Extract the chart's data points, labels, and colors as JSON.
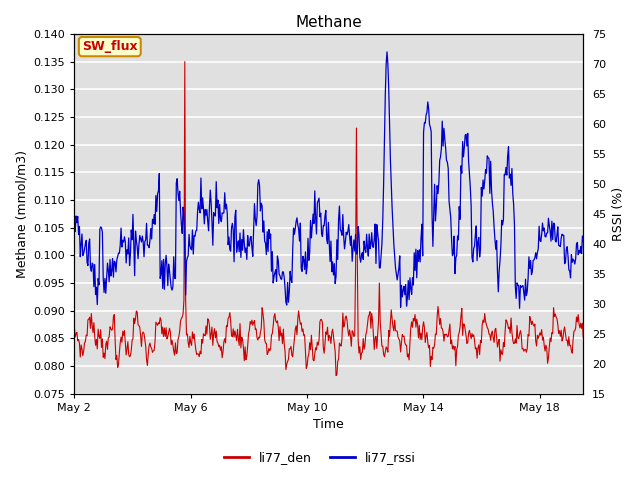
{
  "title": "Methane",
  "xlabel": "Time",
  "ylabel_left": "Methane (mmol/m3)",
  "ylabel_right": "RSSI (%)",
  "ylim_left": [
    0.075,
    0.14
  ],
  "ylim_right": [
    15,
    75
  ],
  "yticks_left": [
    0.075,
    0.08,
    0.085,
    0.09,
    0.095,
    0.1,
    0.105,
    0.11,
    0.115,
    0.12,
    0.125,
    0.13,
    0.135,
    0.14
  ],
  "yticks_right": [
    15,
    20,
    25,
    30,
    35,
    40,
    45,
    50,
    55,
    60,
    65,
    70,
    75
  ],
  "xtick_labels": [
    "May 2",
    "May 6",
    "May 10",
    "May 14",
    "May 18"
  ],
  "xtick_positions": [
    2,
    6,
    10,
    14,
    18
  ],
  "xlim": [
    2,
    19.5
  ],
  "plot_bg_color": "#e0e0e0",
  "fig_bg_color": "#ffffff",
  "grid_color": "#ffffff",
  "line_color_red": "#cc0000",
  "line_color_blue": "#0000cc",
  "legend_label_red": "li77_den",
  "legend_label_blue": "li77_rssi",
  "button_label": "SW_flux",
  "button_facecolor": "#ffffcc",
  "button_edgecolor": "#cc8800",
  "button_textcolor": "#cc0000",
  "title_fontsize": 11,
  "label_fontsize": 9,
  "tick_fontsize": 8
}
